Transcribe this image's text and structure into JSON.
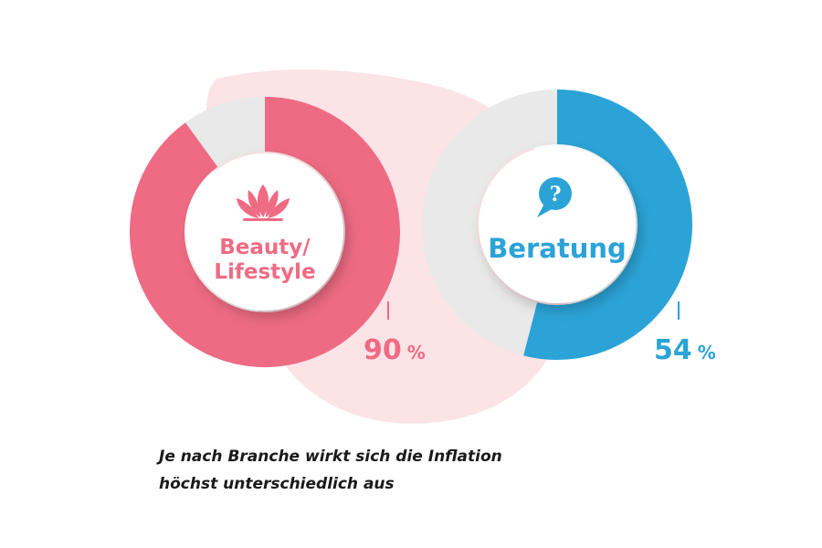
{
  "colors": {
    "blob": "#fbe3e6",
    "beauty": "#ee6b83",
    "beratung": "#2ba3d7",
    "track": "#e9e9e9",
    "center": "#ffffff"
  },
  "chart_data": {
    "type": "donut",
    "title": "",
    "series": [
      {
        "name": "Beauty/ Lifestyle",
        "label_lines": [
          "Beauty/",
          "Lifestyle"
        ],
        "value": 90,
        "value_text": "90",
        "unit": "%",
        "color": "#ee6b83",
        "icon": "lotus-icon"
      },
      {
        "name": "Beratung",
        "label_lines": [
          "Beratung"
        ],
        "value": 54,
        "value_text": "54",
        "unit": "%",
        "color": "#2ba3d7",
        "icon": "question-speech-bubble-icon"
      }
    ]
  },
  "caption": {
    "line1": "Je nach Branche wirkt sich die Inflation",
    "line2": "höchst unterschiedlich aus"
  }
}
